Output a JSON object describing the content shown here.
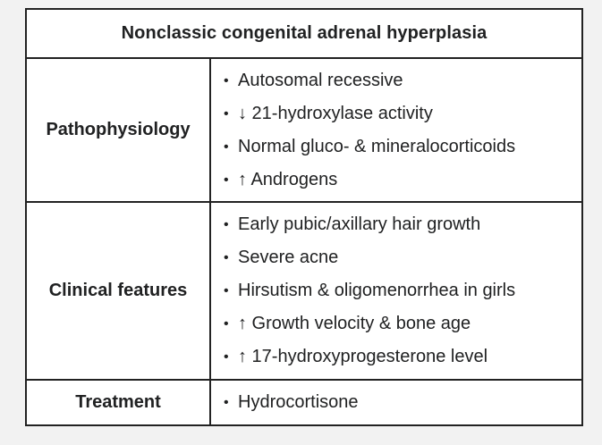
{
  "table": {
    "title": "Nonclassic congenital adrenal hyperplasia",
    "rows": [
      {
        "header": "Pathophysiology",
        "items": [
          "Autosomal recessive",
          "↓ 21-hydroxylase activity",
          "Normal gluco- & mineralocorticoids",
          "↑ Androgens"
        ]
      },
      {
        "header": "Clinical features",
        "items": [
          "Early pubic/axillary hair growth",
          "Severe acne",
          "Hirsutism & oligomenorrhea in girls",
          "↑ Growth velocity & bone age",
          "↑ 17-hydroxyprogesterone level"
        ]
      },
      {
        "header": "Treatment",
        "items": [
          "Hydrocortisone"
        ]
      }
    ]
  }
}
